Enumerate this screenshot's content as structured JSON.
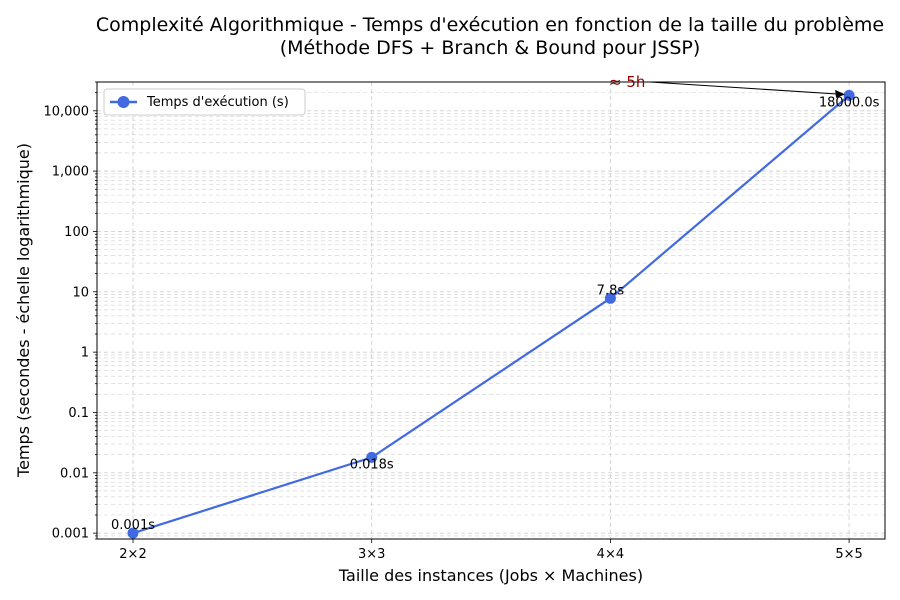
{
  "chart_data": {
    "type": "line",
    "title": "Complexité Algorithmique - Temps d'exécution en fonction de la taille du problème",
    "subtitle": "(Méthode DFS + Branch & Bound pour JSSP)",
    "xlabel": "Taille des instances (Jobs × Machines)",
    "ylabel": "Temps (secondes - échelle logarithmique)",
    "yscale": "log",
    "ylim": [
      0.0008,
      30000
    ],
    "grid": true,
    "legend_position": "top-left",
    "categories": [
      "2×2",
      "3×3",
      "4×4",
      "5×5"
    ],
    "y_ticks": [
      "0.001",
      "0.01",
      "0.1",
      "1",
      "10",
      "100",
      "1,000",
      "10,000"
    ],
    "series": [
      {
        "name": "Temps d'exécution (s)",
        "color": "#4169e1",
        "values": [
          0.001,
          0.018,
          7.8,
          18000
        ],
        "labels": [
          "0.001s",
          "0.018s",
          "7.8s",
          "18000.0s"
        ]
      }
    ],
    "annotation": {
      "text": "≈ 5h",
      "color": "#8b0000",
      "target_category": "5×5",
      "target_value": 18000
    }
  }
}
